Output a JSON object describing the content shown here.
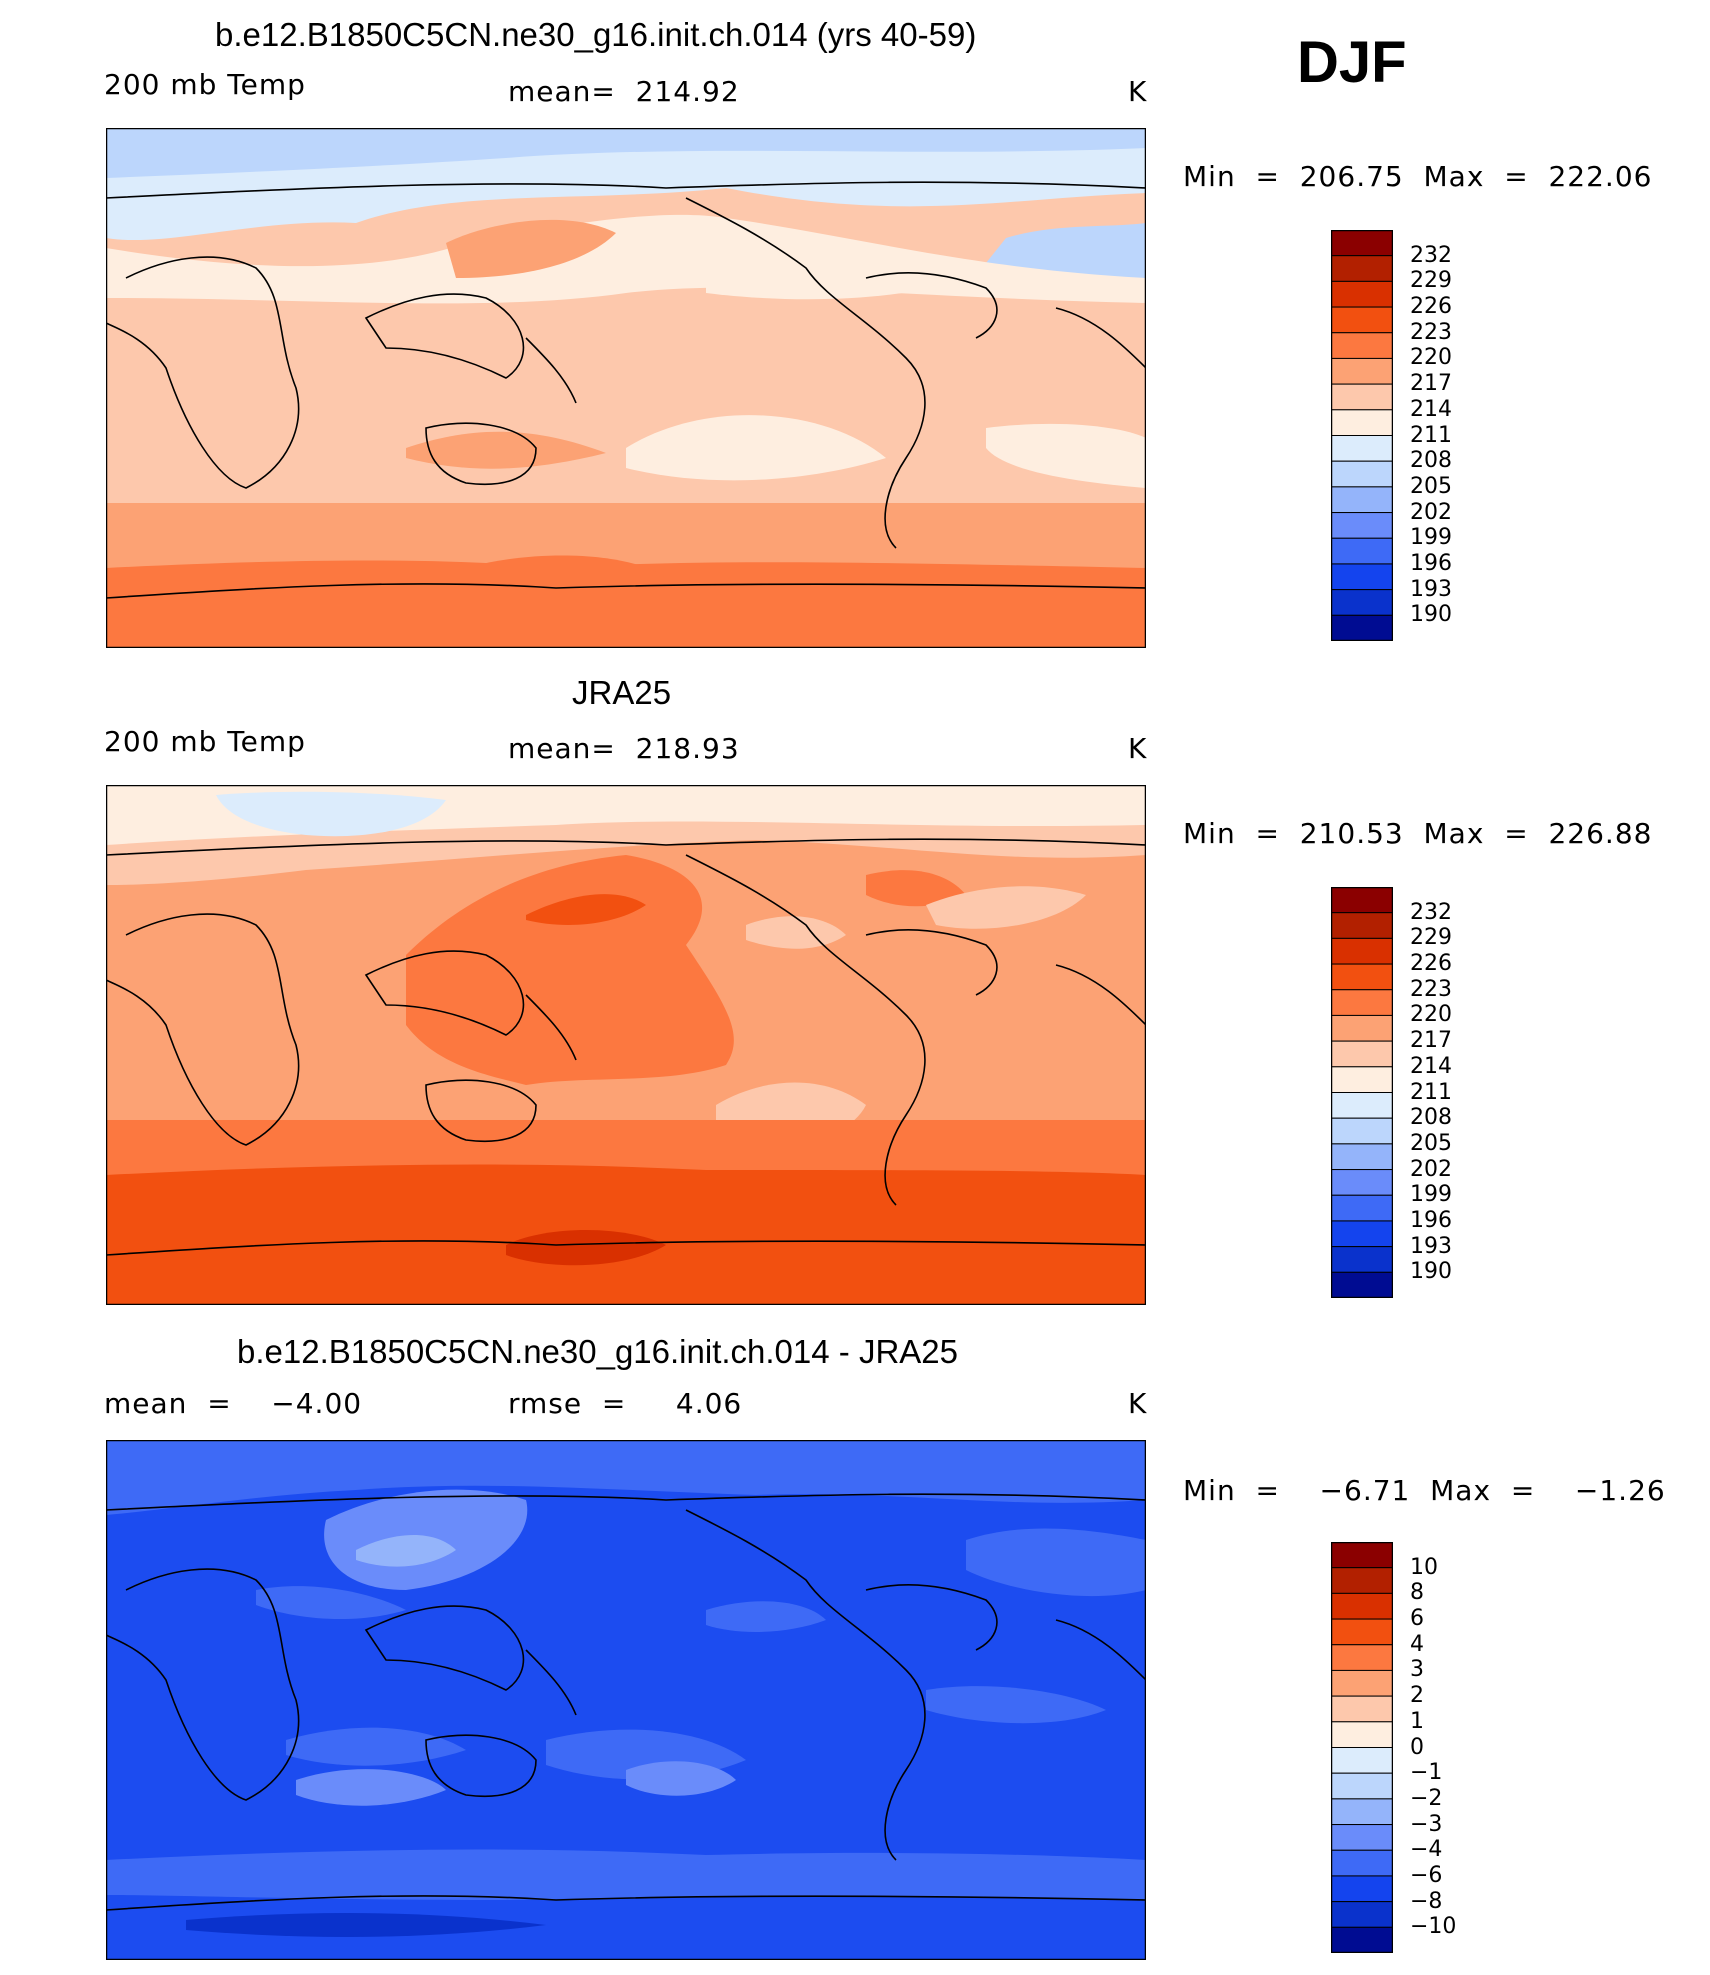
{
  "season_label": "DJF",
  "panels": [
    {
      "title": "b.e12.B1850C5CN.ne30_g16.init.ch.014 (yrs 40-59)",
      "left_label": "200 mb Temp",
      "center_label": "mean=  214.92",
      "units": "K",
      "minmax": "Min  =  206.75  Max  =  222.06",
      "colorbar_labels": [
        "232",
        "229",
        "226",
        "223",
        "220",
        "217",
        "214",
        "211",
        "208",
        "205",
        "202",
        "199",
        "196",
        "193",
        "190"
      ],
      "field_style": "model"
    },
    {
      "title": "JRA25",
      "left_label": "200 mb Temp",
      "center_label": "mean=  218.93",
      "units": "K",
      "minmax": "Min  =  210.53  Max  =  226.88",
      "colorbar_labels": [
        "232",
        "229",
        "226",
        "223",
        "220",
        "217",
        "214",
        "211",
        "208",
        "205",
        "202",
        "199",
        "196",
        "193",
        "190"
      ],
      "field_style": "obs"
    },
    {
      "title": "b.e12.B1850C5CN.ne30_g16.init.ch.014 - JRA25",
      "left_label": "mean  =    −4.00",
      "center_label": "rmse  =     4.06",
      "units": "K",
      "minmax": "Min  =    −6.71  Max  =    −1.26",
      "colorbar_labels": [
        "10",
        "8",
        "6",
        "4",
        "3",
        "2",
        "1",
        "0",
        "−1",
        "−2",
        "−3",
        "−4",
        "−6",
        "−8",
        "−10"
      ],
      "field_style": "diff"
    }
  ],
  "colorbar_colors": [
    "#8b0000",
    "#b22000",
    "#d93000",
    "#f25010",
    "#fc7840",
    "#fca274",
    "#fdc8ac",
    "#feeee0",
    "#dcecfc",
    "#bcd6fc",
    "#94b4fa",
    "#6a8cfa",
    "#3e6af6",
    "#1444ee",
    "#0a32cc",
    "#000c92"
  ],
  "map_colors": {
    "model_base": "#fdc8ac",
    "obs_base": "#fca274",
    "diff_base": "#1c4cf0",
    "coast": "#000000"
  }
}
